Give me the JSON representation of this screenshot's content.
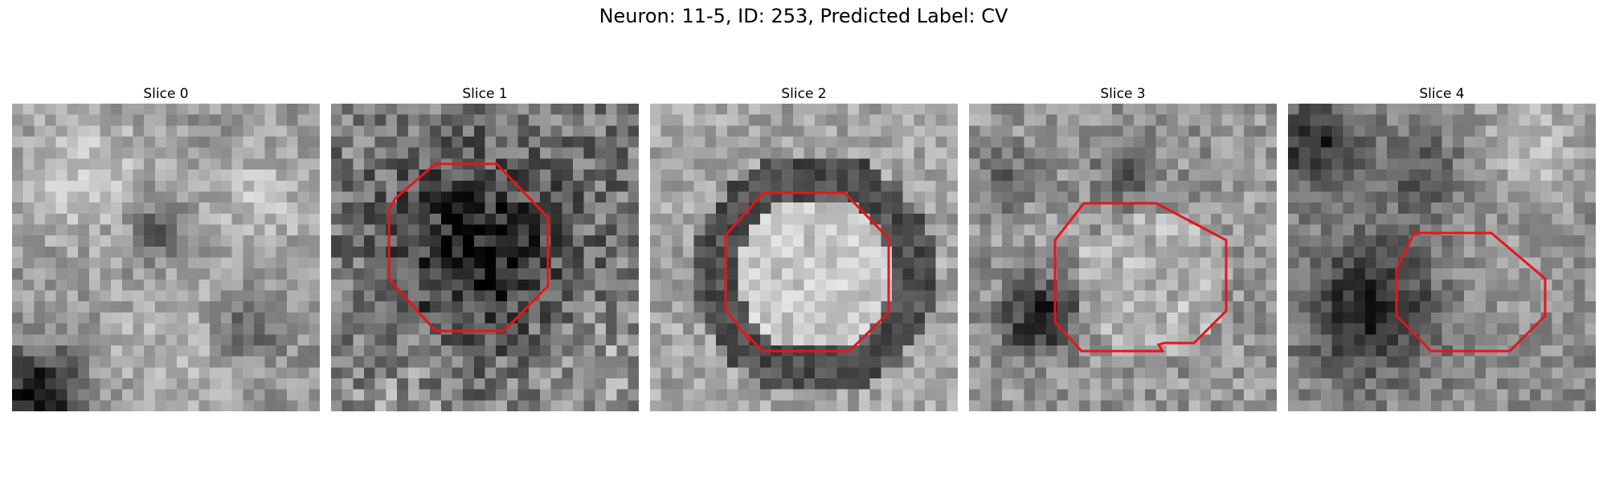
{
  "figure": {
    "title": "Neuron: 11-5, ID: 253, Predicted Label: CV"
  },
  "colors": {
    "outline": "#e8141c",
    "background": "#ffffff"
  },
  "slices": [
    {
      "title": "Slice 0",
      "has_outline": false
    },
    {
      "title": "Slice 1",
      "has_outline": true
    },
    {
      "title": "Slice 2",
      "has_outline": true
    },
    {
      "title": "Slice 3",
      "has_outline": true
    },
    {
      "title": "Slice 4",
      "has_outline": true
    }
  ]
}
